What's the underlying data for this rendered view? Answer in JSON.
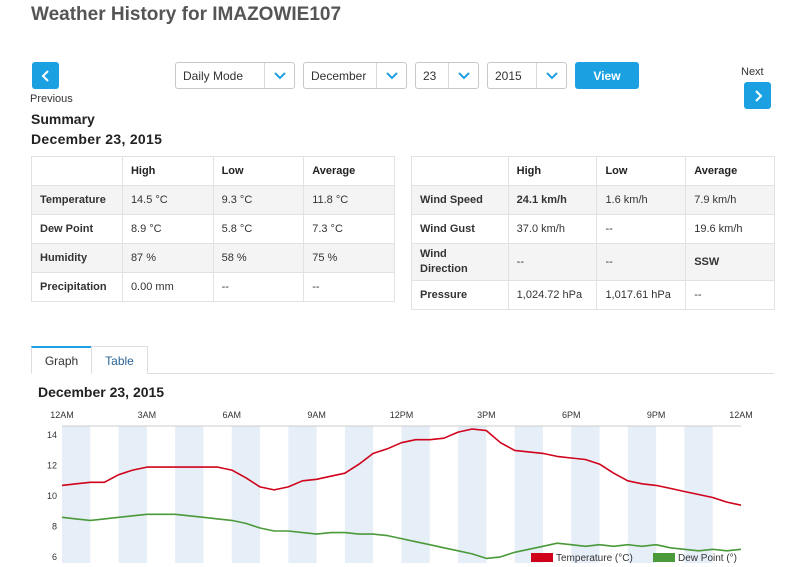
{
  "title": "Weather History for IMAZOWIE107",
  "nav": {
    "previous_label": "Previous",
    "next_label": "Next"
  },
  "controls": {
    "mode": "Daily Mode",
    "month": "December",
    "day": "23",
    "year": "2015",
    "view_label": "View"
  },
  "summary": {
    "heading": "Summary",
    "date": "December 23, 2015",
    "left": {
      "headers": [
        "",
        "High",
        "Low",
        "Average"
      ],
      "rows": [
        [
          "Temperature",
          "14.5 °C",
          "9.3 °C",
          "11.8 °C"
        ],
        [
          "Dew Point",
          "8.9 °C",
          "5.8 °C",
          "7.3 °C"
        ],
        [
          "Humidity",
          "87 %",
          "58 %",
          "75 %"
        ],
        [
          "Precipitation",
          "0.00 mm",
          "--",
          "--"
        ]
      ]
    },
    "right": {
      "headers": [
        "",
        "High",
        "Low",
        "Average"
      ],
      "rows": [
        [
          "Wind Speed",
          "24.1 km/h",
          "1.6 km/h",
          "7.9 km/h"
        ],
        [
          "Wind Gust",
          "37.0 km/h",
          "--",
          "19.6 km/h"
        ],
        [
          "Wind Direction",
          "--",
          "--",
          "SSW"
        ],
        [
          "Pressure",
          "1,024.72 hPa",
          "1,017.61 hPa",
          "--"
        ]
      ]
    }
  },
  "tabs": {
    "graph": "Graph",
    "table": "Table"
  },
  "graph": {
    "date": "December 23, 2015",
    "colors": {
      "temperature": "#d0021b",
      "dew_point": "#4a9a3a",
      "band": "#e6eef7"
    }
  },
  "chart_data": {
    "type": "line",
    "x_tick_labels": [
      "12AM",
      "3AM",
      "6AM",
      "9AM",
      "12PM",
      "3PM",
      "6PM",
      "9PM",
      "12AM"
    ],
    "x_range_hours": [
      0,
      24
    ],
    "ylim": [
      5.6,
      14.6
    ],
    "y_ticks": [
      6,
      8,
      10,
      12,
      14
    ],
    "legend": [
      "Temperature (°C)",
      "Dew Point (°)"
    ],
    "legend_position": "bottom-right",
    "series": [
      {
        "name": "Temperature (°C)",
        "color": "#d0021b",
        "x": [
          0,
          0.5,
          1,
          1.5,
          2,
          2.5,
          3,
          3.5,
          4,
          4.5,
          5,
          5.5,
          6,
          6.5,
          7,
          7.5,
          8,
          8.5,
          9,
          9.5,
          10,
          10.5,
          11,
          11.5,
          12,
          12.5,
          13,
          13.5,
          14,
          14.5,
          15,
          15.5,
          16,
          16.5,
          17,
          17.5,
          18,
          18.5,
          19,
          19.5,
          20,
          20.5,
          21,
          21.5,
          22,
          22.5,
          23,
          23.5,
          24
        ],
        "y": [
          10.7,
          10.8,
          10.9,
          10.9,
          11.4,
          11.7,
          11.9,
          11.9,
          11.9,
          11.9,
          11.9,
          11.9,
          11.7,
          11.2,
          10.6,
          10.4,
          10.6,
          11.0,
          11.1,
          11.3,
          11.5,
          12.1,
          12.8,
          13.1,
          13.5,
          13.7,
          13.7,
          13.8,
          14.2,
          14.4,
          14.3,
          13.5,
          13.0,
          12.9,
          12.8,
          12.6,
          12.5,
          12.4,
          12.1,
          11.5,
          11.0,
          10.8,
          10.7,
          10.5,
          10.3,
          10.1,
          9.9,
          9.6,
          9.4
        ]
      },
      {
        "name": "Dew Point (°)",
        "color": "#4a9a3a",
        "x": [
          0,
          0.5,
          1,
          1.5,
          2,
          2.5,
          3,
          3.5,
          4,
          4.5,
          5,
          5.5,
          6,
          6.5,
          7,
          7.5,
          8,
          8.5,
          9,
          9.5,
          10,
          10.5,
          11,
          11.5,
          12,
          12.5,
          13,
          13.5,
          14,
          14.5,
          15,
          15.5,
          16,
          16.5,
          17,
          17.5,
          18,
          18.5,
          19,
          19.5,
          20,
          20.5,
          21,
          21.5,
          22,
          22.5,
          23,
          23.5,
          24
        ],
        "y": [
          8.6,
          8.5,
          8.4,
          8.5,
          8.6,
          8.7,
          8.8,
          8.8,
          8.8,
          8.7,
          8.6,
          8.5,
          8.4,
          8.2,
          7.9,
          7.7,
          7.7,
          7.6,
          7.5,
          7.6,
          7.6,
          7.5,
          7.5,
          7.4,
          7.2,
          7.0,
          6.8,
          6.6,
          6.4,
          6.2,
          5.9,
          6.0,
          6.3,
          6.5,
          6.7,
          6.9,
          6.8,
          6.7,
          6.8,
          6.7,
          6.8,
          6.7,
          6.8,
          6.6,
          6.5,
          6.4,
          6.5,
          6.4,
          6.5
        ]
      }
    ]
  }
}
